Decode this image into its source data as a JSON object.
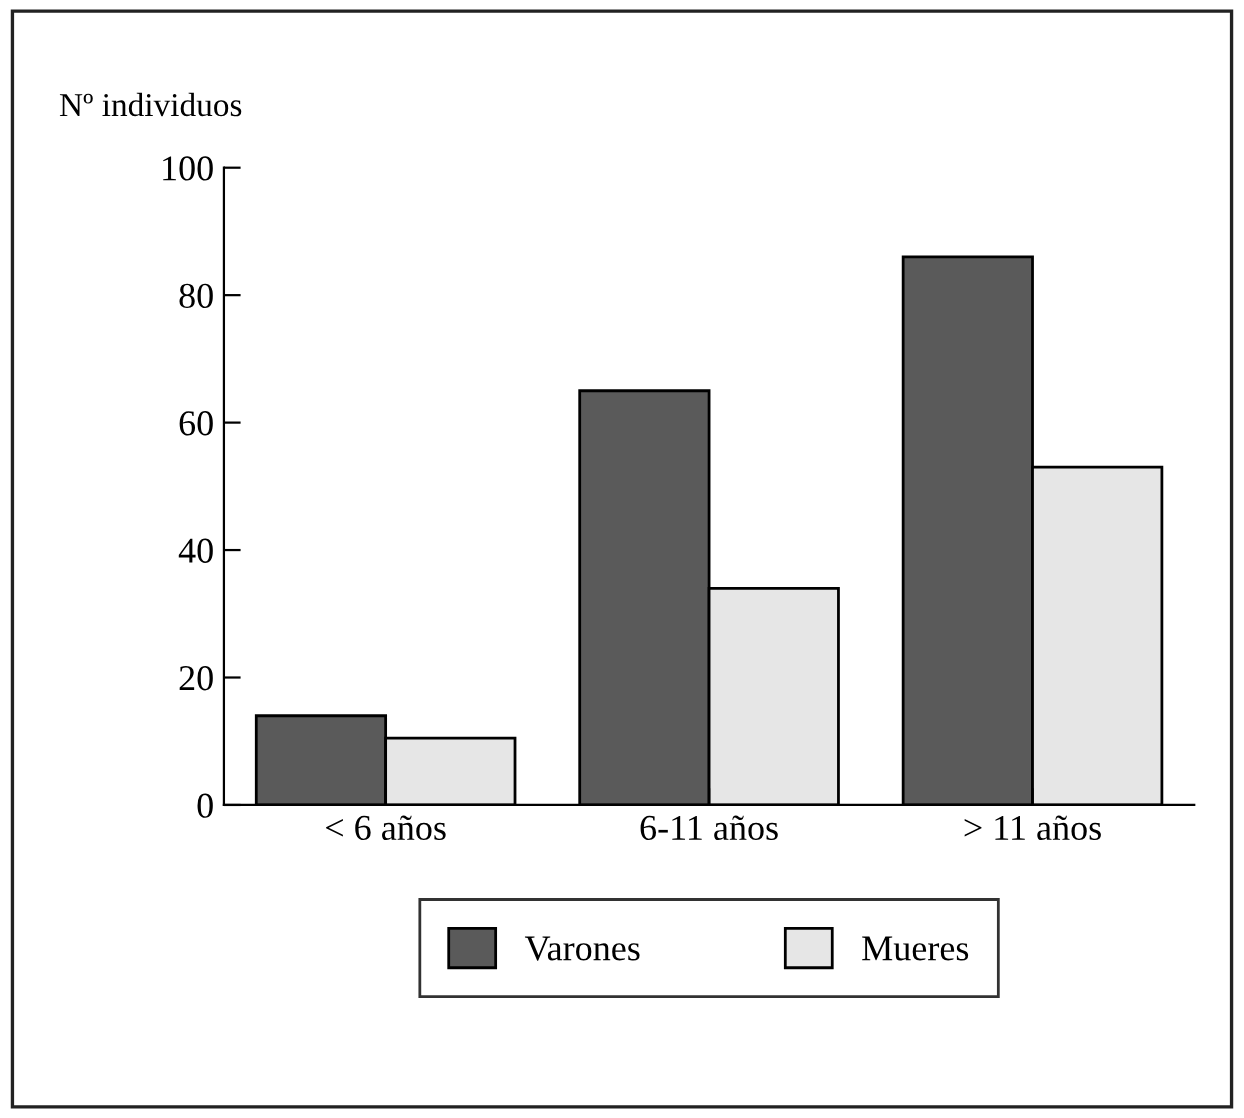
{
  "chart_data": {
    "type": "bar",
    "ylabel": "Nº individuos",
    "categories": [
      "< 6 años",
      "6-11 años",
      "> 11 años"
    ],
    "series": [
      {
        "name": "Varones",
        "color": "#5a5a5a",
        "values": [
          14,
          65,
          86
        ]
      },
      {
        "name": "Mueres",
        "color": "#e6e6e6",
        "values": [
          10.5,
          34,
          53
        ]
      }
    ],
    "ylim": [
      0,
      100
    ],
    "yticks": [
      0,
      20,
      40,
      60,
      80,
      100
    ],
    "grid": false,
    "legend": "bottom"
  }
}
